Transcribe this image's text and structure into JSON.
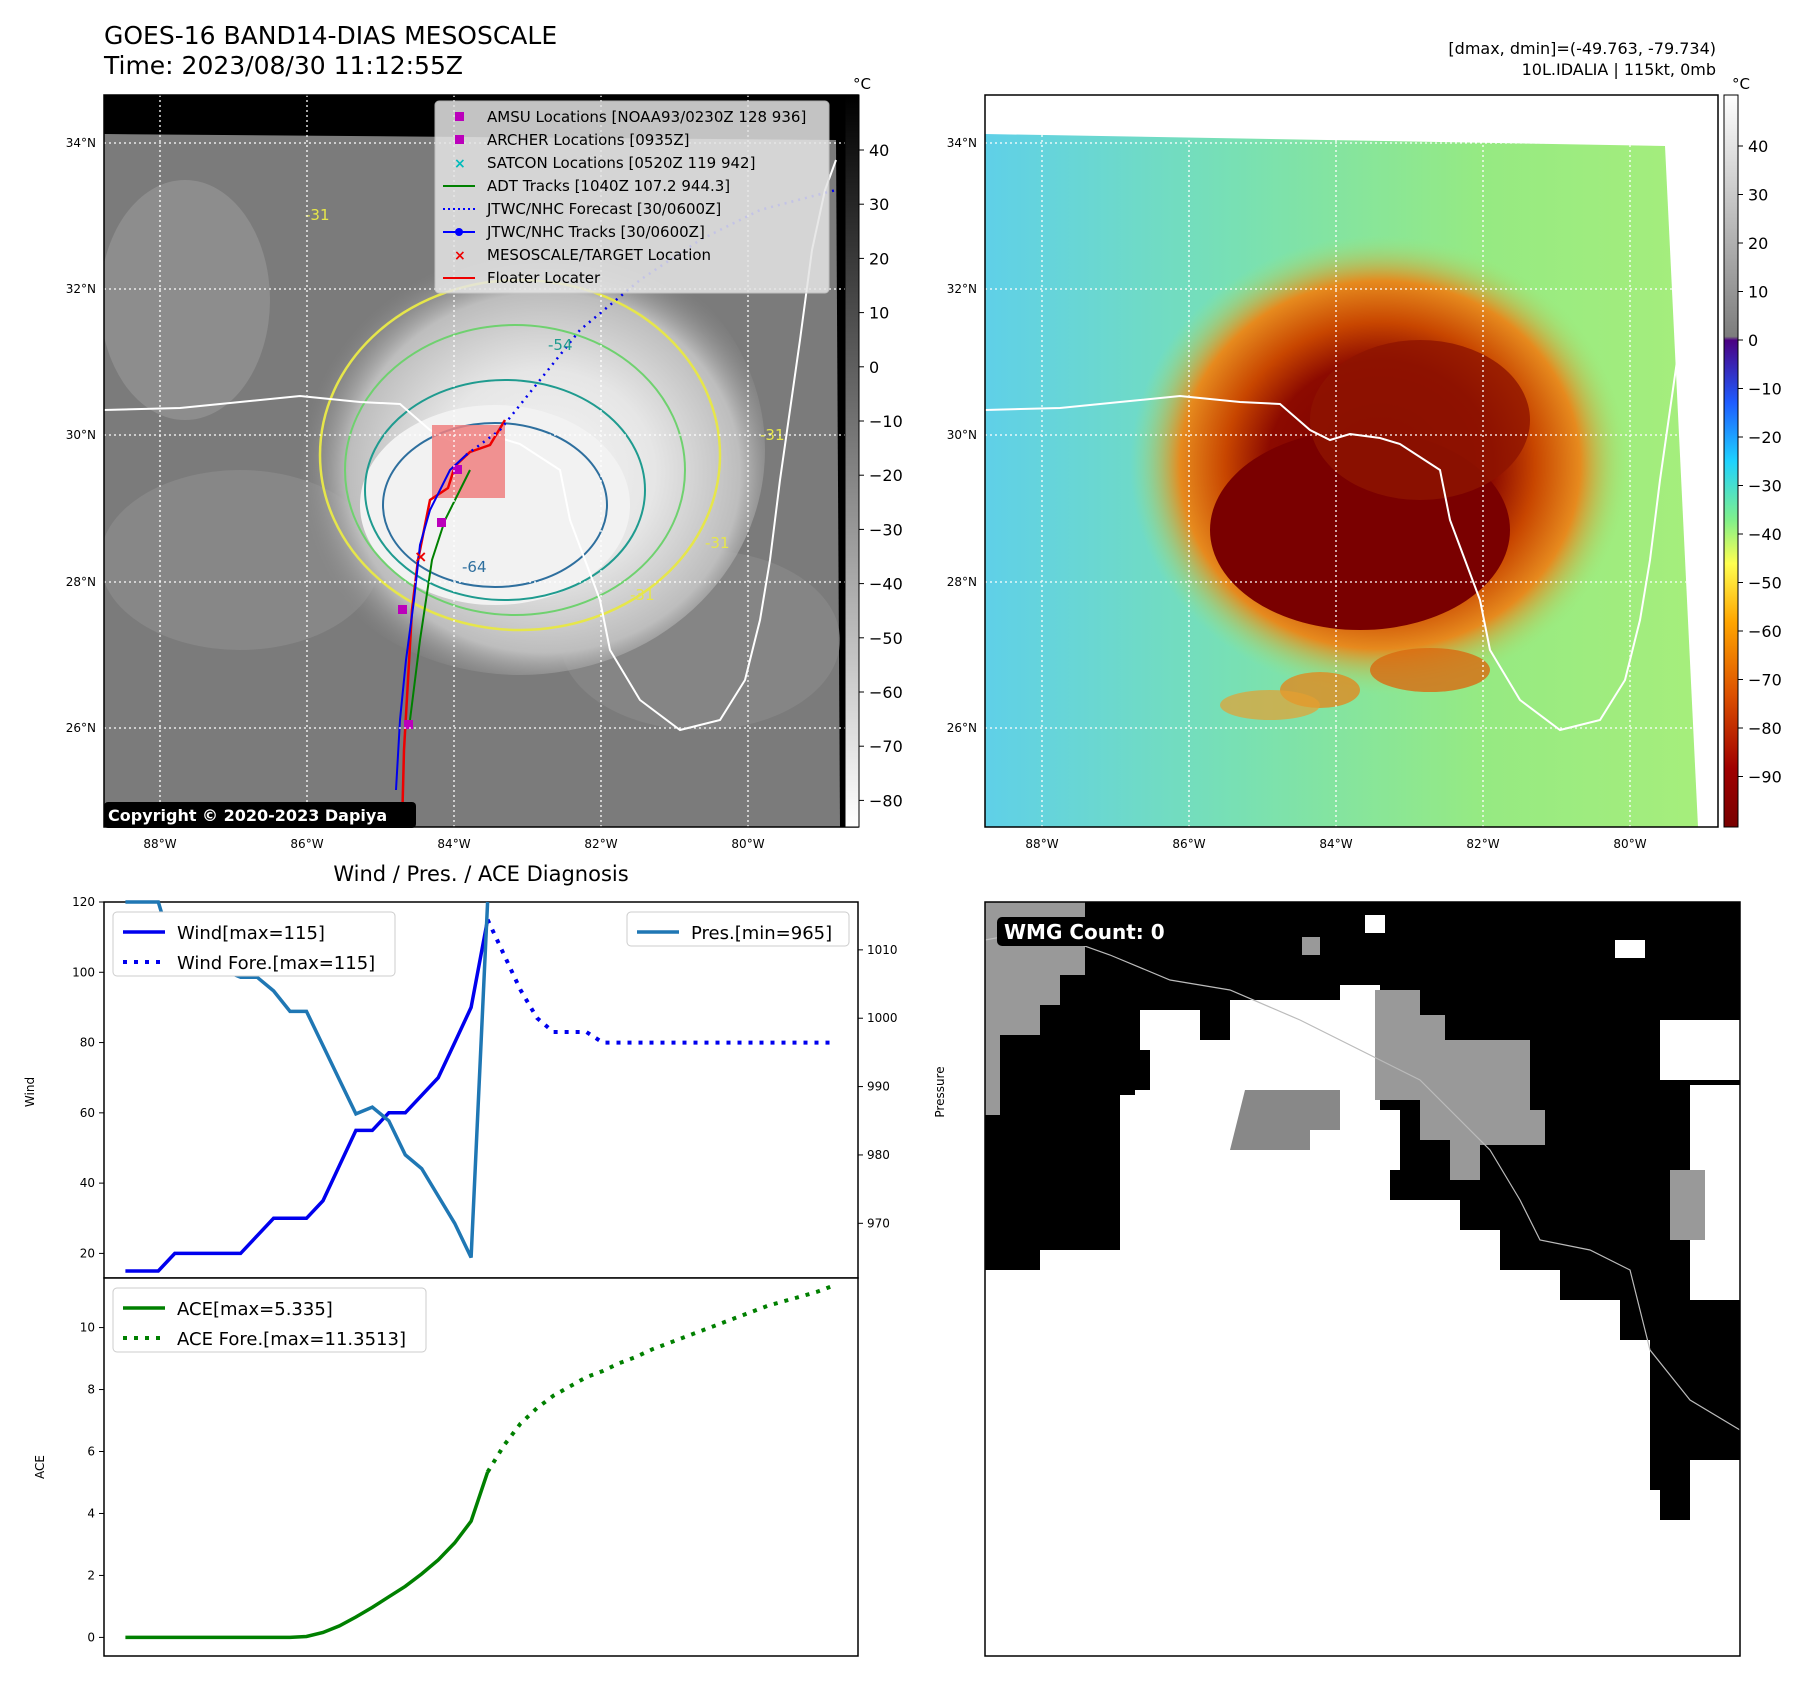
{
  "header": {
    "title": "GOES-16 BAND14-DIAS MESOSCALE",
    "time": "Time: 2023/08/30 11:12:55Z",
    "dmax_dmin": "[dmax, dmin]=(-49.763, -79.734)",
    "storm_info": "10L.IDALIA | 115kt, 0mb"
  },
  "map_axes": {
    "lon_ticks": [
      "88°W",
      "86°W",
      "84°W",
      "82°W",
      "80°W"
    ],
    "lat_ticks": [
      "34°N",
      "32°N",
      "30°N",
      "28°N",
      "26°N"
    ],
    "unit": "°C"
  },
  "ir_panel": {
    "colorbar_ticks": [
      "40",
      "30",
      "20",
      "10",
      "0",
      "−10",
      "−20",
      "−30",
      "−40",
      "−50",
      "−60",
      "−70",
      "−80"
    ],
    "legend": [
      {
        "label": "AMSU Locations [NOAA93/0230Z 128 936]",
        "marker": "square",
        "color": "#bb00bb"
      },
      {
        "label": "ARCHER Locations [0935Z]",
        "marker": "square",
        "color": "#bb00bb"
      },
      {
        "label": "SATCON Locations [0520Z 119 942]",
        "marker": "x",
        "color": "#00bbbb"
      },
      {
        "label": "ADT Tracks [1040Z 107.2 944.3]",
        "marker": "line",
        "color": "#008000"
      },
      {
        "label": "JTWC/NHC Forecast [30/0600Z]",
        "marker": "dotted",
        "color": "#0000ff"
      },
      {
        "label": "JTWC/NHC Tracks [30/0600Z]",
        "marker": "line-dot",
        "color": "#0000ff"
      },
      {
        "label": "MESOSCALE/TARGET Location",
        "marker": "x",
        "color": "#ee0000"
      },
      {
        "label": "Floater Locater",
        "marker": "line",
        "color": "#ee0000"
      }
    ],
    "contour_labels": [
      "-54",
      "-31",
      "-64",
      "-31",
      "-31",
      "-31"
    ],
    "copyright": "Copyright © 2020-2023 Dapiya"
  },
  "color_panel": {
    "colorbar_ticks": [
      "40",
      "30",
      "20",
      "10",
      "0",
      "−10",
      "−20",
      "−30",
      "−40",
      "−50",
      "−60",
      "−70",
      "−80",
      "−90"
    ]
  },
  "wmg_panel": {
    "count_label": "WMG Count: 0"
  },
  "chart_data": [
    {
      "type": "line",
      "title": "Wind / Pres. / ACE Diagnosis",
      "ylabel": "Wind",
      "ylabel_right": "Pressure",
      "ylim": [
        13,
        120
      ],
      "ylim_right": [
        962,
        1017
      ],
      "yticks": [
        "120",
        "100",
        "80",
        "60",
        "40",
        "20"
      ],
      "yticks_right": [
        "1010",
        "1000",
        "990",
        "980",
        "970"
      ],
      "x": [
        0,
        1,
        2,
        3,
        4,
        5,
        6,
        7,
        8,
        9,
        10,
        11,
        12,
        13,
        14,
        15,
        16,
        17,
        18,
        19,
        20,
        21,
        22,
        23,
        24,
        25,
        26,
        27,
        28,
        29,
        30,
        31,
        32,
        33,
        34,
        35,
        36,
        37,
        38,
        39,
        40,
        41,
        42,
        43
      ],
      "series": [
        {
          "name": "Wind[max=115]",
          "style": "solid",
          "color": "#0000ee",
          "values": [
            15,
            15,
            15,
            20,
            20,
            20,
            20,
            20,
            25,
            30,
            30,
            30,
            35,
            45,
            55,
            55,
            60,
            60,
            65,
            70,
            80,
            90,
            115,
            null,
            null,
            null,
            null,
            null,
            null,
            null,
            null,
            null,
            null,
            null,
            null,
            null,
            null,
            null,
            null,
            null,
            null,
            null,
            null,
            null
          ]
        },
        {
          "name": "Wind Fore.[max=115]",
          "style": "dotted",
          "color": "#0000ee",
          "values": [
            null,
            null,
            null,
            null,
            null,
            null,
            null,
            null,
            null,
            null,
            null,
            null,
            null,
            null,
            null,
            null,
            null,
            null,
            null,
            null,
            null,
            null,
            115,
            105,
            95,
            87,
            83,
            83,
            83,
            80,
            80,
            80,
            80,
            80,
            80,
            80,
            80,
            80,
            80,
            80,
            80,
            80,
            80,
            80
          ]
        },
        {
          "name": "Pres.[min=965]",
          "style": "solid",
          "color": "#1f77b4",
          "axis": "right",
          "values": [
            1017,
            1017,
            1017,
            1009,
            1008,
            1007,
            1007,
            1006,
            1006,
            1004,
            1001,
            1001,
            996,
            991,
            986,
            987,
            985,
            980,
            978,
            974,
            970,
            965,
            1017,
            null,
            null,
            null,
            null,
            null,
            null,
            null,
            null,
            null,
            null,
            null,
            null,
            null,
            null,
            null,
            null,
            null,
            null,
            null,
            null,
            null
          ]
        }
      ]
    },
    {
      "type": "line",
      "ylabel": "ACE",
      "ylim": [
        -0.6,
        11.6
      ],
      "yticks": [
        "10",
        "8",
        "6",
        "4",
        "2",
        "0"
      ],
      "x": [
        0,
        1,
        2,
        3,
        4,
        5,
        6,
        7,
        8,
        9,
        10,
        11,
        12,
        13,
        14,
        15,
        16,
        17,
        18,
        19,
        20,
        21,
        22,
        23,
        24,
        25,
        26,
        27,
        28,
        29,
        30,
        31,
        32,
        33,
        34,
        35,
        36,
        37,
        38,
        39,
        40,
        41,
        42,
        43
      ],
      "series": [
        {
          "name": "ACE[max=5.335]",
          "style": "solid",
          "color": "#008000",
          "values": [
            0,
            0,
            0,
            0,
            0,
            0,
            0,
            0,
            0,
            0,
            0,
            0.03,
            0.16,
            0.37,
            0.66,
            0.97,
            1.31,
            1.65,
            2.05,
            2.5,
            3.05,
            3.75,
            5.335,
            null,
            null,
            null,
            null,
            null,
            null,
            null,
            null,
            null,
            null,
            null,
            null,
            null,
            null,
            null,
            null,
            null,
            null,
            null,
            null,
            null
          ]
        },
        {
          "name": "ACE Fore.[max=11.3513]",
          "style": "dotted",
          "color": "#008000",
          "values": [
            null,
            null,
            null,
            null,
            null,
            null,
            null,
            null,
            null,
            null,
            null,
            null,
            null,
            null,
            null,
            null,
            null,
            null,
            null,
            null,
            null,
            null,
            5.335,
            6.2,
            6.9,
            7.4,
            7.8,
            8.1,
            8.4,
            8.6,
            8.85,
            9.05,
            9.3,
            9.5,
            9.7,
            9.9,
            10.1,
            10.3,
            10.5,
            10.7,
            10.85,
            11.0,
            11.15,
            11.3513
          ]
        }
      ]
    }
  ]
}
